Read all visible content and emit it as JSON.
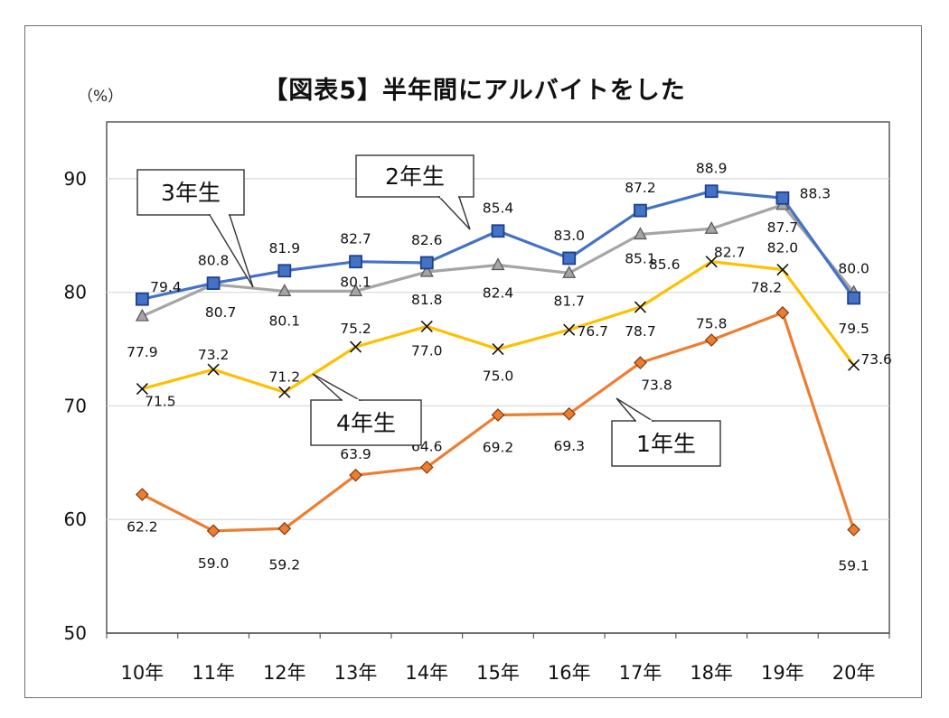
{
  "page": {
    "title": "【図表5】半年間にアルバイトをした",
    "y_unit": "（%）"
  },
  "chart_data": {
    "type": "line",
    "title": "【図表5】半年間にアルバイトをした",
    "ylabel": "（%）",
    "xlabel": "",
    "categories": [
      "10年",
      "11年",
      "12年",
      "13年",
      "14年",
      "15年",
      "16年",
      "17年",
      "18年",
      "19年",
      "20年"
    ],
    "ylim": [
      50,
      95
    ],
    "yticks": [
      50,
      60,
      70,
      80,
      90
    ],
    "grid": "horizontal",
    "legend": "callouts",
    "series": [
      {
        "name": "1年生",
        "color": "#ed7d31",
        "marker": "diamond",
        "values": [
          62.2,
          59.0,
          59.2,
          63.9,
          64.6,
          69.2,
          69.3,
          73.8,
          75.8,
          78.2,
          59.1
        ]
      },
      {
        "name": "2年生",
        "color": "#4472c4",
        "marker": "square",
        "values": [
          79.4,
          80.8,
          81.9,
          82.7,
          82.6,
          85.4,
          83.0,
          87.2,
          88.9,
          88.3,
          79.5
        ]
      },
      {
        "name": "3年生",
        "color": "#a5a5a5",
        "marker": "triangle",
        "values": [
          77.9,
          80.7,
          80.1,
          80.1,
          81.8,
          82.4,
          81.7,
          85.1,
          85.6,
          87.7,
          80.0
        ]
      },
      {
        "name": "4年生",
        "color": "#ffc000",
        "marker": "x",
        "values": [
          71.5,
          73.2,
          71.2,
          75.2,
          77.0,
          75.0,
          76.7,
          78.7,
          82.7,
          82.0,
          73.6
        ]
      }
    ]
  }
}
